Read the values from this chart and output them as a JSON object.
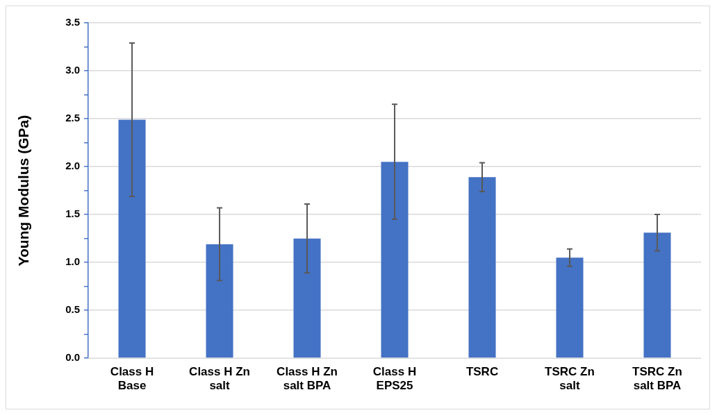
{
  "chart_data": {
    "type": "bar",
    "ylabel": "Young Modulus (GPa)",
    "categories": [
      "Class H Base",
      "Class H Zn salt",
      "Class H Zn salt BPA",
      "Class H EPS25",
      "TSRC",
      "TSRC Zn salt",
      "TSRC Zn salt BPA"
    ],
    "values": [
      2.49,
      1.19,
      1.25,
      2.05,
      1.89,
      1.05,
      1.31
    ],
    "errors": [
      0.8,
      0.38,
      0.36,
      0.6,
      0.15,
      0.09,
      0.19
    ],
    "color": "#4472c4",
    "ylim": [
      0,
      3.5
    ],
    "yticks": [
      {
        "value": 0,
        "label": "0.0"
      },
      {
        "value": 0.25,
        "label": null
      },
      0.5,
      {
        "value": 0.75,
        "label": null
      },
      {
        "value": 1,
        "label": "1.0"
      },
      {
        "value": 1.25,
        "label": null
      },
      1.5,
      {
        "value": 1.75,
        "label": null
      },
      {
        "value": 2,
        "label": "2.0"
      },
      {
        "value": 2.25,
        "label": null
      },
      2.5,
      {
        "value": 2.75,
        "label": null
      },
      {
        "value": 3,
        "label": "3.0"
      },
      {
        "value": 3.25,
        "label": null
      },
      3.5
    ],
    "grid": "y",
    "legend": false
  }
}
